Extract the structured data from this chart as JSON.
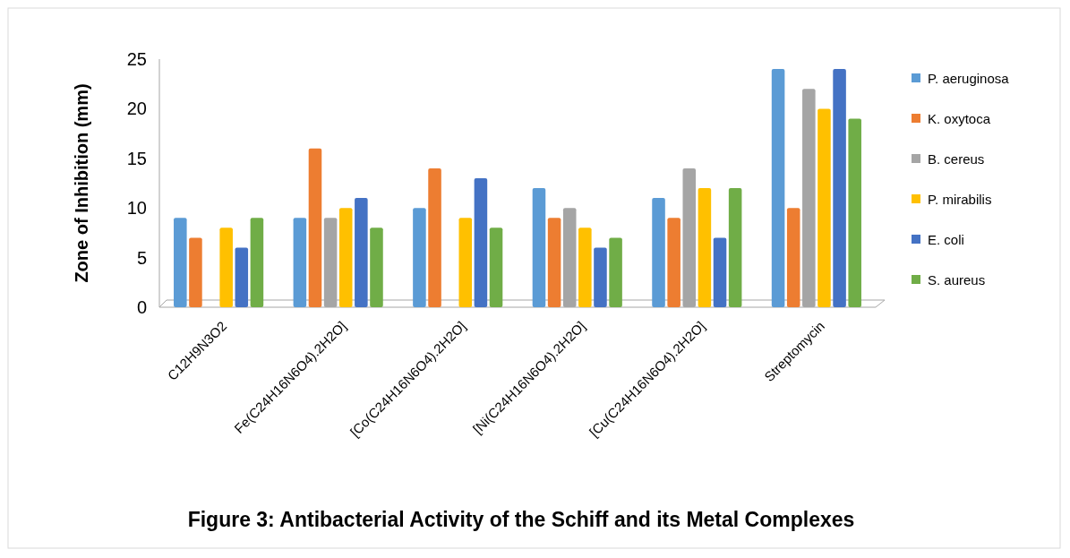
{
  "chart_data": {
    "type": "bar",
    "title": "Figure 3: Antibacterial Activity of the Schiff and its Metal Complexes",
    "ylabel": "Zone of Inhibition (mm)",
    "categories": [
      "C12H9N3O2",
      "Fe(C24H16N6O4).2H2O]",
      "[Co(C24H16N6O4).2H2O]",
      "[Ni(C24H16N6O4).2H2O]",
      "[Cu(C24H16N6O4).2H2O]",
      "Streptomycin"
    ],
    "series": [
      {
        "name": "P. aeruginosa",
        "color": "#5b9bd5",
        "values": [
          9,
          9,
          10,
          12,
          11,
          24
        ]
      },
      {
        "name": "K. oxytoca",
        "color": "#ed7d31",
        "values": [
          7,
          16,
          14,
          9,
          9,
          10
        ]
      },
      {
        "name": "B. cereus",
        "color": "#a5a5a5",
        "values": [
          0,
          9,
          0,
          10,
          14,
          22
        ]
      },
      {
        "name": "P. mirabilis",
        "color": "#ffc000",
        "values": [
          8,
          10,
          9,
          8,
          12,
          20
        ]
      },
      {
        "name": "E. coli",
        "color": "#4472c4",
        "values": [
          6,
          11,
          13,
          6,
          7,
          24
        ]
      },
      {
        "name": "S. aureus",
        "color": "#70ad47",
        "values": [
          9,
          8,
          8,
          7,
          12,
          19
        ]
      }
    ],
    "ylim": [
      0,
      25
    ],
    "yticks": [
      0,
      5,
      10,
      15,
      20,
      25
    ],
    "legend": "right"
  }
}
